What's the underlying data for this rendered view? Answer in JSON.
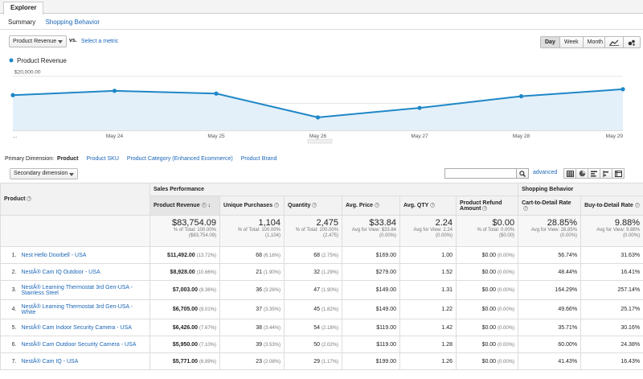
{
  "tabs": {
    "explorer": "Explorer"
  },
  "subtabs": [
    "Summary",
    "Shopping Behavior"
  ],
  "metric_selector": {
    "value": "Product Revenue",
    "vs": "vs.",
    "select_metric": "Select a metric"
  },
  "time_buttons": [
    "Day",
    "Week",
    "Month"
  ],
  "active_time": "Day",
  "chart_data": {
    "type": "line",
    "series": [
      {
        "name": "Product Revenue",
        "values": [
          13000,
          14600,
          13600,
          4800,
          8300,
          12600,
          15200
        ]
      }
    ],
    "x": [
      "",
      "May 24",
      "May 25",
      "May 26",
      "May 27",
      "May 28",
      "May 29"
    ],
    "x_ticks": [
      "...",
      "May 24",
      "May 25",
      "May 26",
      "May 27",
      "May 28",
      "May 29"
    ],
    "y_ticks": [
      "$10,000.00",
      "$20,000.00"
    ],
    "y_tick_values": [
      10000,
      20000
    ],
    "ylim": [
      0,
      22000
    ],
    "color": "#1f87c7",
    "legend": "top-left"
  },
  "primary_dimension": {
    "label": "Primary Dimension:",
    "active": "Product",
    "options": [
      "Product SKU",
      "Product Category (Enhanced Ecommerce)",
      "Product Brand"
    ]
  },
  "secondary_dimension": "Secondary dimension",
  "advanced_link": "advanced",
  "table": {
    "group_headers": {
      "sales": "Sales Performance",
      "shopping": "Shopping Behavior"
    },
    "product_header": "Product",
    "columns": [
      "Product Revenue",
      "Unique Purchases",
      "Quantity",
      "Avg. Price",
      "Avg. QTY",
      "Product Refund Amount",
      "Cart-to-Detail Rate",
      "Buy-to-Detail Rate"
    ],
    "totals": [
      {
        "value": "$83,754.09",
        "sub1": "% of Total: 100.00%",
        "sub2": "($83,754.09)"
      },
      {
        "value": "1,104",
        "sub1": "% of Total: 100.00%",
        "sub2": "(1,104)"
      },
      {
        "value": "2,475",
        "sub1": "% of Total: 100.00%",
        "sub2": "(2,475)"
      },
      {
        "value": "$33.84",
        "sub1": "Avg for View: $33.84",
        "sub2": "(0.00%)"
      },
      {
        "value": "2.24",
        "sub1": "Avg for View: 2.24",
        "sub2": "(0.00%)"
      },
      {
        "value": "$0.00",
        "sub1": "% of Total: 0.00%",
        "sub2": "($0.00)"
      },
      {
        "value": "28.85%",
        "sub1": "Avg for View: 28.85%",
        "sub2": "(0.00%)"
      },
      {
        "value": "9.88%",
        "sub1": "Avg for View: 9.88%",
        "sub2": "(0.00%)"
      }
    ],
    "rows": [
      {
        "idx": "1.",
        "product": "Nest Hello Doorbell - USA",
        "rev": "$11,492.00",
        "rev_pct": "(13.72%)",
        "up": "68",
        "up_pct": "(6.16%)",
        "qty": "68",
        "qty_pct": "(2.75%)",
        "price": "$169.00",
        "aq": "1.00",
        "ref": "$0.00",
        "ref_pct": "(0.00%)",
        "ctd": "56.74%",
        "btd": "31.63%"
      },
      {
        "idx": "2.",
        "product": "NestÂ® Cam IQ Outdoor - USA",
        "rev": "$8,928.00",
        "rev_pct": "(10.66%)",
        "up": "21",
        "up_pct": "(1.90%)",
        "qty": "32",
        "qty_pct": "(1.29%)",
        "price": "$279.00",
        "aq": "1.52",
        "ref": "$0.00",
        "ref_pct": "(0.00%)",
        "ctd": "48.44%",
        "btd": "16.41%"
      },
      {
        "idx": "3.",
        "product": "NestÂ® Learning Thermostat 3rd Gen-USA - Stainless Steel",
        "rev": "$7,003.00",
        "rev_pct": "(8.36%)",
        "up": "36",
        "up_pct": "(3.26%)",
        "qty": "47",
        "qty_pct": "(1.90%)",
        "price": "$149.00",
        "aq": "1.31",
        "ref": "$0.00",
        "ref_pct": "(0.00%)",
        "ctd": "164.29%",
        "btd": "257.14%"
      },
      {
        "idx": "4.",
        "product": "NestÂ® Learning Thermostat 3rd Gen-USA - White",
        "rev": "$6,705.00",
        "rev_pct": "(8.01%)",
        "up": "37",
        "up_pct": "(3.35%)",
        "qty": "45",
        "qty_pct": "(1.82%)",
        "price": "$149.00",
        "aq": "1.22",
        "ref": "$0.00",
        "ref_pct": "(0.00%)",
        "ctd": "49.66%",
        "btd": "25.17%"
      },
      {
        "idx": "5.",
        "product": "NestÂ® Cam Indoor Security Camera - USA",
        "rev": "$6,426.00",
        "rev_pct": "(7.67%)",
        "up": "38",
        "up_pct": "(3.44%)",
        "qty": "54",
        "qty_pct": "(2.18%)",
        "price": "$119.00",
        "aq": "1.42",
        "ref": "$0.00",
        "ref_pct": "(0.00%)",
        "ctd": "35.71%",
        "btd": "30.16%"
      },
      {
        "idx": "6.",
        "product": "NestÂ® Cam Outdoor Security Camera - USA",
        "rev": "$5,950.00",
        "rev_pct": "(7.10%)",
        "up": "39",
        "up_pct": "(3.53%)",
        "qty": "50",
        "qty_pct": "(2.02%)",
        "price": "$119.00",
        "aq": "1.28",
        "ref": "$0.00",
        "ref_pct": "(0.00%)",
        "ctd": "60.00%",
        "btd": "24.38%"
      },
      {
        "idx": "7.",
        "product": "NestÂ® Cam IQ - USA",
        "rev": "$5,771.00",
        "rev_pct": "(6.89%)",
        "up": "23",
        "up_pct": "(2.08%)",
        "qty": "29",
        "qty_pct": "(1.17%)",
        "price": "$199.00",
        "aq": "1.26",
        "ref": "$0.00",
        "ref_pct": "(0.00%)",
        "ctd": "41.43%",
        "btd": "16.43%"
      }
    ]
  }
}
